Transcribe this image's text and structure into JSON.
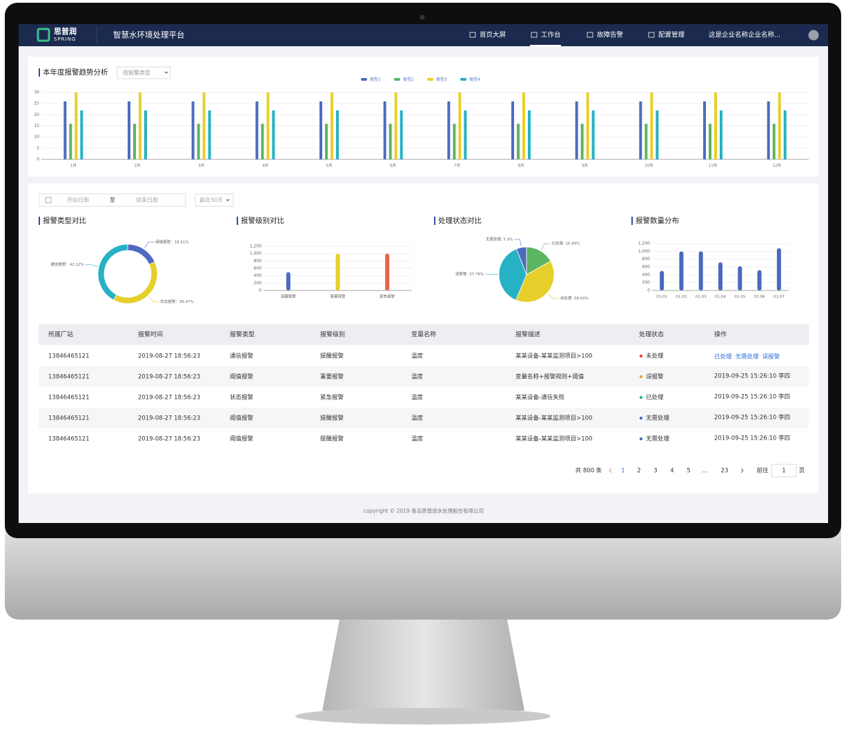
{
  "header": {
    "logo": "思普润",
    "logo_sub": "SPRING",
    "title": "智慧水环境处理平台",
    "nav": [
      "首页大屏",
      "工作台",
      "故障告警",
      "配置管理"
    ],
    "company": "这是企业名称企业名称..."
  },
  "trend_filter": "按报警类型",
  "filters": {
    "start": "开始日期",
    "separator": "至",
    "end": "结束日期",
    "range": "最近30天"
  },
  "chart_data": [
    {
      "type": "bar",
      "title": "本年度报警趋势分析",
      "categories": [
        "1月",
        "2月",
        "3月",
        "4月",
        "5月",
        "6月",
        "7月",
        "8月",
        "9月",
        "10月",
        "11月",
        "12月"
      ],
      "series": [
        {
          "name": "类型1",
          "color": "#4f6bbf",
          "values": [
            26,
            26,
            26,
            26,
            26,
            26,
            26,
            26,
            26,
            26,
            26,
            26
          ]
        },
        {
          "name": "类型2",
          "color": "#5cb563",
          "values": [
            16,
            16,
            16,
            16,
            16,
            16,
            16,
            16,
            16,
            16,
            16,
            16
          ]
        },
        {
          "name": "类型3",
          "color": "#e6cf2a",
          "values": [
            30,
            30,
            30,
            30,
            30,
            30,
            30,
            30,
            30,
            30,
            30,
            30
          ]
        },
        {
          "name": "类型4",
          "color": "#26b1c4",
          "values": [
            22,
            22,
            22,
            22,
            22,
            22,
            22,
            22,
            22,
            22,
            22,
            22
          ]
        }
      ],
      "ylim": [
        0,
        30
      ],
      "yticks": [
        0,
        5,
        10,
        15,
        20,
        25,
        30
      ],
      "grid": true
    },
    {
      "type": "donut",
      "title": "报警类型对比",
      "values": [
        18.41,
        39.47,
        42.12
      ],
      "value_labels": [
        "阈值报警：18.41%",
        "状态报警：39.47%",
        "通信报警：42.12%"
      ],
      "colors": [
        "#4f6bbf",
        "#e6cf2a",
        "#26b1c4"
      ]
    },
    {
      "type": "bar",
      "title": "报警级别对比",
      "categories": [
        "提醒报警",
        "重要报警",
        "紧急报警"
      ],
      "values": [
        500,
        1000,
        1000
      ],
      "colors": [
        "#4f6bbf",
        "#e6cf2a",
        "#e8634a"
      ],
      "ylim": [
        0,
        1200
      ],
      "yticks": [
        0,
        200,
        400,
        600,
        800,
        {
          "value": 1000,
          "label": "1,000"
        },
        {
          "value": 1200,
          "label": "1,200"
        }
      ],
      "grid": true
    },
    {
      "type": "pie",
      "title": "处理状态对比",
      "values": [
        16.89,
        39.43,
        37.78,
        5.9
      ],
      "value_labels": [
        "已处理: 16.89%",
        "未处理: 39.43%",
        "误报警: 37.78%",
        "无需处理: 5.9%"
      ],
      "colors": [
        "#5cb563",
        "#e6cf2a",
        "#26b1c4",
        "#4f6bbf"
      ]
    },
    {
      "type": "bar",
      "title": "报警数量分布",
      "categories": [
        "01-01",
        "01-02",
        "01-03",
        "01-04",
        "01-05",
        "01-06",
        "01-07"
      ],
      "values": [
        500,
        1000,
        1000,
        720,
        620,
        520,
        1080
      ],
      "color": "#4a68bd",
      "ylim": [
        0,
        1200
      ],
      "yticks": [
        0,
        200,
        400,
        600,
        800,
        {
          "value": 1000,
          "label": "1,000"
        },
        {
          "value": 1200,
          "label": "1,200"
        }
      ],
      "grid": true
    }
  ],
  "table": {
    "headers": [
      "所属厂站",
      "报警时间",
      "报警类型",
      "报警级别",
      "变量名称",
      "报警描述",
      "处理状态",
      "操作"
    ],
    "rows": [
      [
        "13846465121",
        "2019-08-27  18:56:23",
        "通信报警",
        "提醒报警",
        "温度",
        "某某设备-某某监测项目>100",
        "未处理",
        [
          "已处理",
          "无需处理",
          "误报警"
        ]
      ],
      [
        "13846465121",
        "2019-08-27  18:56:23",
        "阈值报警",
        "重要报警",
        "温度",
        "变量名称+报警规则+阈值",
        "误报警",
        "2019-09-25  15:26:10  李四"
      ],
      [
        "13846465121",
        "2019-08-27  18:56:23",
        "状态报警",
        "紧急报警",
        "温度",
        "某某设备-通信失败",
        "已处理",
        "2019-09-25  15:26:10  李四"
      ],
      [
        "13846465121",
        "2019-08-27  18:56:23",
        "阈值报警",
        "提醒报警",
        "温度",
        "某某设备-某某监测项目>100",
        "无需处理",
        "2019-09-25  15:26:10  李四"
      ],
      [
        "13846465121",
        "2019-08-27  18:56:23",
        "阈值报警",
        "提醒报警",
        "温度",
        "某某设备-某某监测项目>100",
        "无需处理",
        "2019-09-25  15:26:10  李四"
      ]
    ],
    "status_colors": [
      "#e84343",
      "#f0a030",
      "#2bb673",
      "#4f6bbf",
      "#4f6bbf"
    ]
  },
  "pagination": {
    "total": "共 800 条",
    "pages": [
      "1",
      "2",
      "3",
      "4",
      "5",
      "...",
      "23"
    ],
    "goto": "前往",
    "page_input": "1",
    "unit": "页"
  },
  "footer": "copyright  © 2019   青岛思普润水处理股份有限公司"
}
